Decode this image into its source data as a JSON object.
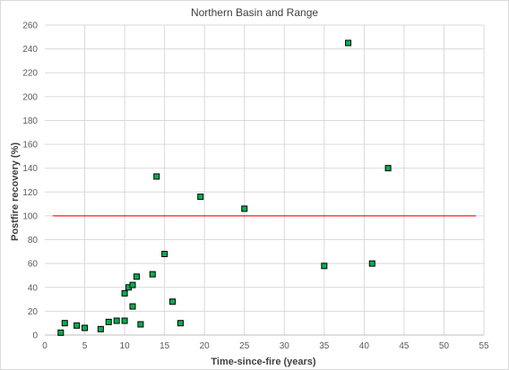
{
  "chart_data": {
    "type": "scatter",
    "title": "Northern Basin and Range",
    "xlabel": "Time-since-fire (years)",
    "ylabel": "Postfire recovery (%)",
    "xlim": [
      0,
      55
    ],
    "ylim": [
      0,
      260
    ],
    "x_ticks": [
      0,
      5,
      10,
      15,
      20,
      25,
      30,
      35,
      40,
      45,
      50,
      55
    ],
    "y_ticks": [
      0,
      20,
      40,
      60,
      80,
      100,
      120,
      140,
      160,
      180,
      200,
      220,
      240,
      260
    ],
    "grid": true,
    "series": [
      {
        "marker": "square",
        "color": "#00B050",
        "edgecolor": "#000000",
        "points": [
          {
            "x": 2,
            "y": 2
          },
          {
            "x": 2.5,
            "y": 10
          },
          {
            "x": 4,
            "y": 8
          },
          {
            "x": 5,
            "y": 6
          },
          {
            "x": 7,
            "y": 5
          },
          {
            "x": 8,
            "y": 11
          },
          {
            "x": 9,
            "y": 12
          },
          {
            "x": 10,
            "y": 12
          },
          {
            "x": 10,
            "y": 35
          },
          {
            "x": 10.5,
            "y": 40
          },
          {
            "x": 11,
            "y": 24
          },
          {
            "x": 11,
            "y": 42
          },
          {
            "x": 11.5,
            "y": 49
          },
          {
            "x": 12,
            "y": 9
          },
          {
            "x": 13.5,
            "y": 51
          },
          {
            "x": 14,
            "y": 133
          },
          {
            "x": 15,
            "y": 68
          },
          {
            "x": 16,
            "y": 28
          },
          {
            "x": 17,
            "y": 10
          },
          {
            "x": 19.5,
            "y": 116
          },
          {
            "x": 25,
            "y": 106
          },
          {
            "x": 35,
            "y": 58
          },
          {
            "x": 38,
            "y": 245
          },
          {
            "x": 41,
            "y": 60
          },
          {
            "x": 43,
            "y": 140
          }
        ]
      }
    ],
    "reference_line": {
      "y": 100,
      "x_range": [
        1,
        54
      ],
      "color": "#FF0000"
    }
  }
}
